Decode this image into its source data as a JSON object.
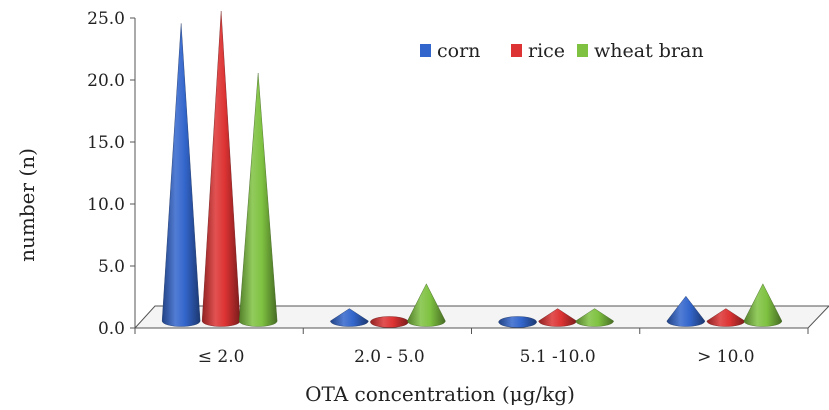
{
  "chart_data": {
    "type": "bar",
    "style": "3d-cone",
    "categories": [
      "≤ 2.0",
      "2.0 - 5.0",
      "5.1 -10.0",
      "> 10.0"
    ],
    "series": [
      {
        "name": "corn",
        "color": "#3366cc",
        "values": [
          24,
          1,
          0,
          2
        ]
      },
      {
        "name": "rice",
        "color": "#dd3333",
        "values": [
          25,
          0,
          1,
          1
        ]
      },
      {
        "name": "wheat bran",
        "color": "#7fc241",
        "values": [
          20,
          3,
          1,
          3
        ]
      }
    ],
    "yticks": [
      "0.0",
      "5.0",
      "10.0",
      "15.0",
      "20.0",
      "25.0"
    ],
    "ylim": [
      0,
      25
    ],
    "xlabel": "OTA concentration (μg/kg)",
    "ylabel": "number (n)",
    "legend_position": "top-right",
    "grid": false
  }
}
